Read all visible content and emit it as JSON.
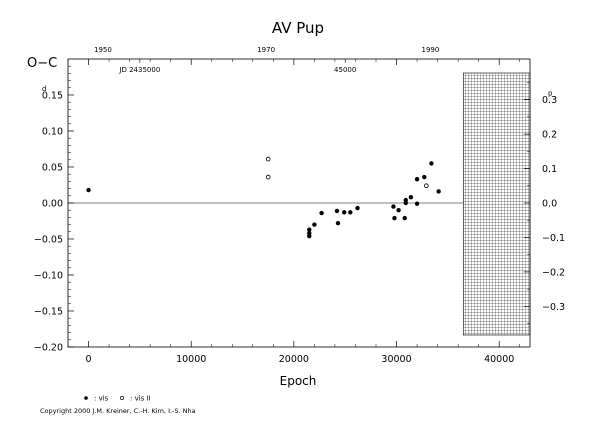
{
  "chart_data": {
    "type": "scatter",
    "title": "AV Pup",
    "xlabel": "Epoch",
    "ylabel": "O−C",
    "y_unit": "d",
    "y2_unit": "p",
    "xlim": [
      -2000,
      43000
    ],
    "ylim": [
      -0.2,
      0.2
    ],
    "x_ticks": [
      0,
      10000,
      20000,
      30000,
      40000
    ],
    "x_tick_labels": [
      "0",
      "10000",
      "20000",
      "30000",
      "40000"
    ],
    "y_ticks": [
      -0.2,
      -0.15,
      -0.1,
      -0.05,
      0,
      0.05,
      0.1,
      0.15
    ],
    "y_tick_labels": [
      "−0.20",
      "−0.15",
      "−0.10",
      "−0.05",
      "0.00",
      "0.05",
      "0.10",
      "0.15"
    ],
    "y2_ticks": [
      -0.3,
      -0.2,
      -0.1,
      0,
      0.1,
      0.2,
      0.3
    ],
    "y2_tick_labels": [
      "−0.3",
      "−0.2",
      "−0.1",
      "0.0",
      "0.1",
      "0.2",
      "0.3"
    ],
    "y2_scale": 2.09,
    "top_axis": {
      "ticks": [
        {
          "x": 1400,
          "label": "1950"
        },
        {
          "x": 17300,
          "label": "1970"
        },
        {
          "x": 33300,
          "label": "1990"
        }
      ]
    },
    "jd_labels": [
      {
        "x": 5000,
        "label": "JD 2435000"
      },
      {
        "x": 25000,
        "label": "45000"
      }
    ],
    "hatched_region_x": [
      36500,
      43000
    ],
    "legend": [
      {
        "marker": "filled",
        "label": ": vis"
      },
      {
        "marker": "open",
        "label": ": vis II"
      }
    ],
    "series": [
      {
        "marker": "filled",
        "points": [
          [
            0,
            0.018
          ],
          [
            21500,
            -0.037
          ],
          [
            21500,
            -0.042
          ],
          [
            21500,
            -0.046
          ],
          [
            22000,
            -0.03
          ],
          [
            22700,
            -0.014
          ],
          [
            24200,
            -0.011
          ],
          [
            24300,
            -0.028
          ],
          [
            24900,
            -0.013
          ],
          [
            25500,
            -0.013
          ],
          [
            26200,
            -0.007
          ],
          [
            29700,
            -0.005
          ],
          [
            29800,
            -0.021
          ],
          [
            30200,
            -0.01
          ],
          [
            30800,
            -0.021
          ],
          [
            30900,
            0.0
          ],
          [
            30900,
            0.004
          ],
          [
            31400,
            0.008
          ],
          [
            32000,
            -0.001
          ],
          [
            32000,
            0.033
          ],
          [
            32700,
            0.036
          ],
          [
            33400,
            0.055
          ],
          [
            34100,
            0.016
          ]
        ]
      },
      {
        "marker": "open",
        "points": [
          [
            17500,
            0.061
          ],
          [
            17500,
            0.036
          ],
          [
            32900,
            0.024
          ]
        ]
      }
    ]
  },
  "copyright": "Copyright 2000 J.M. Kreiner, C.-H. Kim, I.-S. Nha"
}
